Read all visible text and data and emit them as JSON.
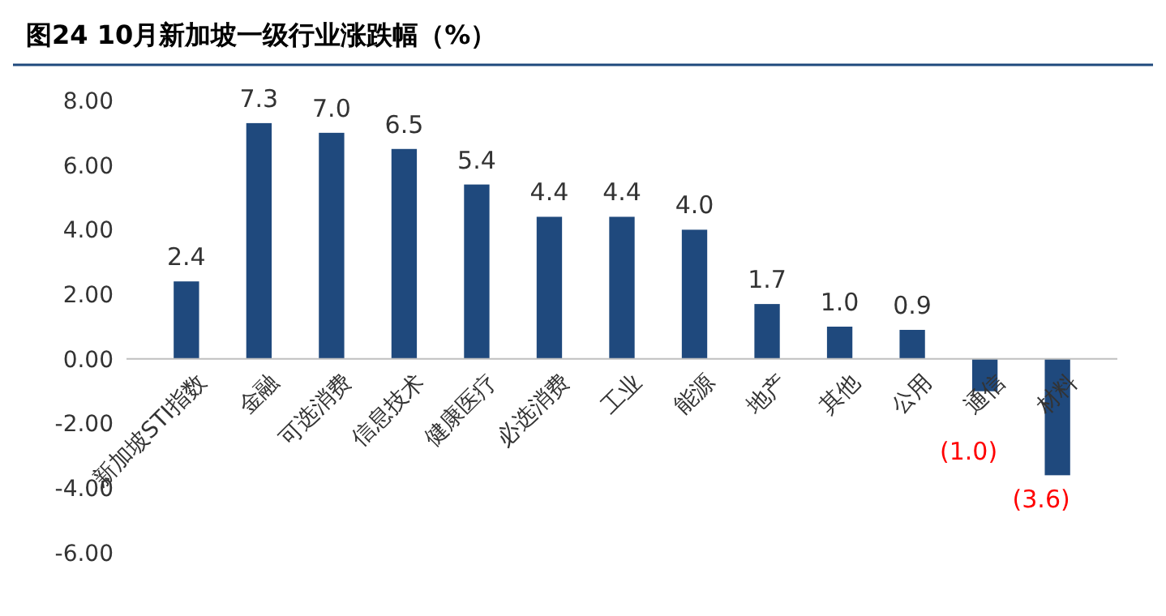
{
  "chart_data": {
    "type": "bar",
    "title": "图24 10月新加坡一级行业涨跌幅（%）",
    "categories": [
      "新加坡STI指数",
      "金融",
      "可选消费",
      "信息技术",
      "健康医疗",
      "必选消费",
      "工业",
      "能源",
      "地产",
      "其他",
      "公用",
      "通信",
      "材料"
    ],
    "values": [
      2.4,
      7.3,
      7.0,
      6.5,
      5.4,
      4.4,
      4.4,
      4.0,
      1.7,
      1.0,
      0.9,
      -1.0,
      -3.6
    ],
    "value_labels": [
      "2.4",
      "7.3",
      "7.0",
      "6.5",
      "5.4",
      "4.4",
      "4.4",
      "4.0",
      "1.7",
      "1.0",
      "0.9",
      "(1.0)",
      "(3.6)"
    ],
    "color": "#1f497d",
    "ylim": [
      -6,
      8
    ],
    "yticks": [
      {
        "value": -6,
        "label": "-6.00"
      },
      {
        "value": -4,
        "label": "-4.00"
      },
      {
        "value": -2,
        "label": "-2.00"
      },
      {
        "value": 0,
        "label": "0.00"
      },
      {
        "value": 2,
        "label": "2.00"
      },
      {
        "value": 4,
        "label": "4.00"
      },
      {
        "value": 6,
        "label": "6.00"
      },
      {
        "value": 8,
        "label": "8.00"
      }
    ],
    "grid": false
  }
}
